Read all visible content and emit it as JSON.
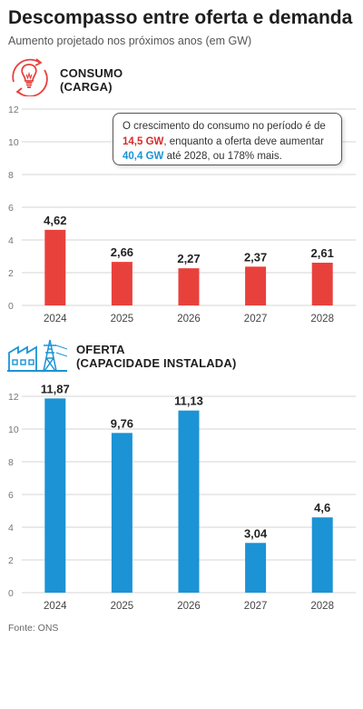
{
  "title": "Descompasso entre oferta e demanda",
  "subtitle": "Aumento projetado nos próximos anos (em GW)",
  "colors": {
    "consumo": "#e8413c",
    "oferta": "#1b93d5",
    "grid": "#d6d6d6",
    "axis_text": "#777777"
  },
  "consumo_section": {
    "icon": "light-bulb-icon",
    "label_line1": "CONSUMO",
    "label_line2": "(CARGA)"
  },
  "oferta_section": {
    "icon": "power-plant-transmission-tower-icon",
    "label_line1": "OFERTA",
    "label_line2": "(CAPACIDADE INSTALADA)"
  },
  "callout": {
    "part1": "O crescimento do consumo no período é de ",
    "highlight1": "14,5 GW",
    "part2": ", enquanto a oferta deve aumentar ",
    "highlight2": "40,4 GW",
    "part3": " até 2028, ou 178% mais."
  },
  "source": "Fonte: ONS",
  "chart_data": [
    {
      "type": "bar",
      "categories": [
        "2024",
        "2025",
        "2026",
        "2027",
        "2028"
      ],
      "series": [
        {
          "name": "CONSUMO (CARGA)",
          "values": [
            4.62,
            2.66,
            2.27,
            2.37,
            2.61
          ]
        }
      ],
      "value_labels": [
        "4,62",
        "2,66",
        "2,27",
        "2,37",
        "2,61"
      ],
      "ylim": [
        0,
        12
      ],
      "yticks": [
        0,
        2,
        4,
        6,
        8,
        10,
        12
      ],
      "grid": true
    },
    {
      "type": "bar",
      "categories": [
        "2024",
        "2025",
        "2026",
        "2027",
        "2028"
      ],
      "series": [
        {
          "name": "OFERTA (CAPACIDADE INSTALADA)",
          "values": [
            11.87,
            9.76,
            11.13,
            3.04,
            4.6
          ]
        }
      ],
      "value_labels": [
        "11,87",
        "9,76",
        "11,13",
        "3,04",
        "4,6"
      ],
      "ylim": [
        0,
        12
      ],
      "yticks": [
        0,
        2,
        4,
        6,
        8,
        10,
        12
      ],
      "grid": true
    }
  ]
}
